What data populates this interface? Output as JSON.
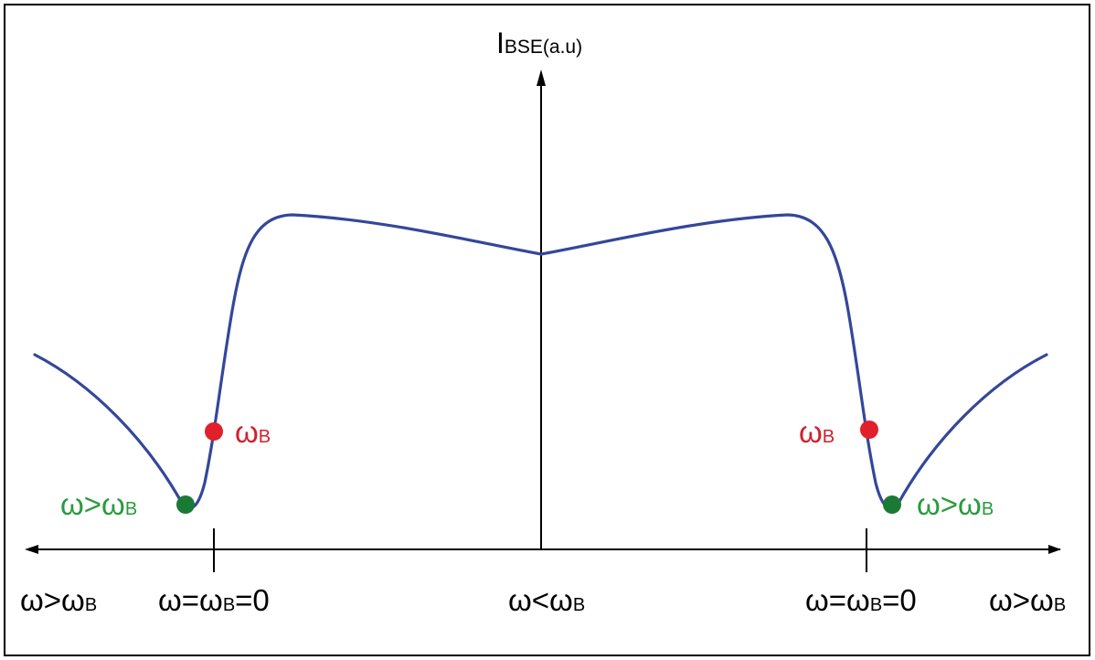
{
  "diagram": {
    "y_axis_label": {
      "main": "I",
      "sub": "BSE(a.u)"
    },
    "x_labels": {
      "far_left": {
        "pre": "ω>ω",
        "sub": "B",
        "post": ""
      },
      "left_zero": {
        "pre": "ω=ω",
        "sub": "B",
        "post": "=0"
      },
      "center": {
        "pre": "ω<ω",
        "sub": "B",
        "post": ""
      },
      "right_zero": {
        "pre": "ω=ω",
        "sub": "B",
        "post": "=0"
      },
      "far_right": {
        "pre": "ω>ω",
        "sub": "B",
        "post": ""
      }
    },
    "point_labels": {
      "left_red": {
        "pre": "ω",
        "sub": "B"
      },
      "left_green": {
        "pre": "ω>ω",
        "sub": "B"
      },
      "right_red": {
        "pre": "ω",
        "sub": "B"
      },
      "right_green": {
        "pre": "ω>ω",
        "sub": "B"
      }
    },
    "colors": {
      "curve": "#33479a",
      "red_point": "#e0202a",
      "green_point": "#1a7a35",
      "red_text": "#d2202d",
      "green_text": "#2a9a3e",
      "axis": "#000000"
    }
  }
}
